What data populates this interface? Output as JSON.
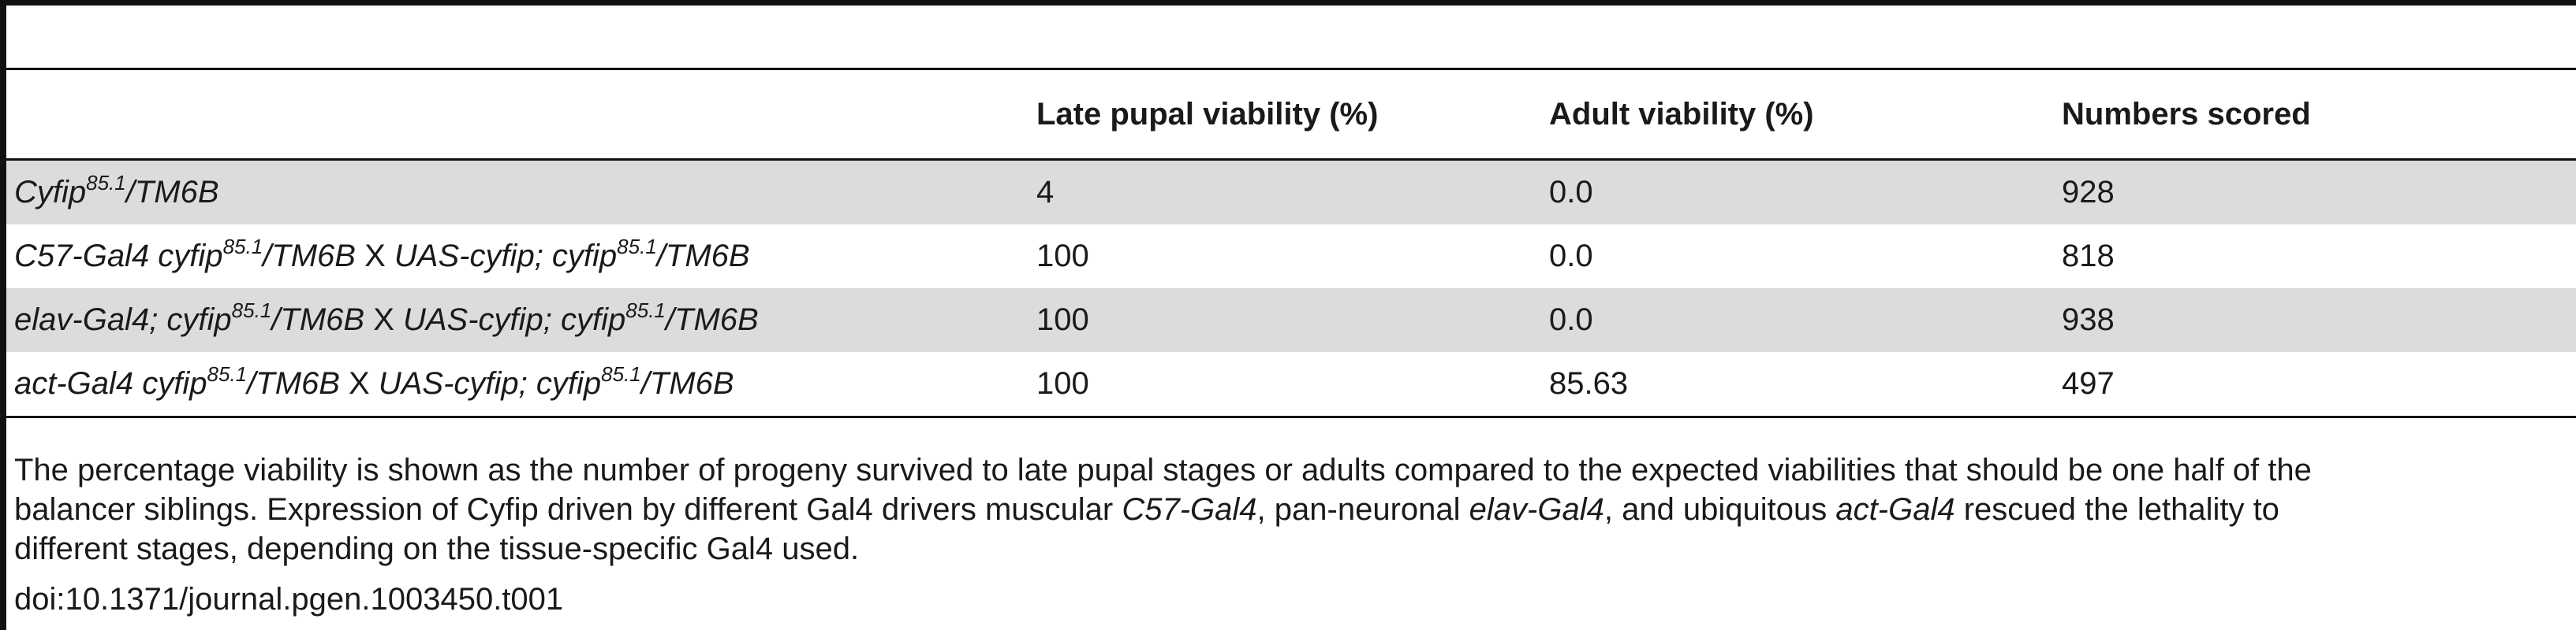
{
  "table": {
    "headers": [
      "",
      "Late pupal viability (%)",
      "Adult viability (%)",
      "Numbers scored"
    ],
    "rows": [
      {
        "genotype": [
          {
            "t": "Cyfip",
            "i": true
          },
          {
            "t": "85.1",
            "i": true,
            "sup": true
          },
          {
            "t": "/TM6B",
            "i": true
          }
        ],
        "late_pupal": "4",
        "adult": "0.0",
        "scored": "928"
      },
      {
        "genotype": [
          {
            "t": "C57-Gal4 cyfip",
            "i": true
          },
          {
            "t": "85.1",
            "i": true,
            "sup": true
          },
          {
            "t": "/TM6B",
            "i": true
          },
          {
            "t": " X ",
            "i": false
          },
          {
            "t": "UAS-cyfip; cyfip",
            "i": true
          },
          {
            "t": "85.1",
            "i": true,
            "sup": true
          },
          {
            "t": "/TM6B",
            "i": true
          }
        ],
        "late_pupal": "100",
        "adult": "0.0",
        "scored": "818"
      },
      {
        "genotype": [
          {
            "t": "elav-Gal4; cyfip",
            "i": true
          },
          {
            "t": "85.1",
            "i": true,
            "sup": true
          },
          {
            "t": "/TM6B",
            "i": true
          },
          {
            "t": " X ",
            "i": false
          },
          {
            "t": "UAS-cyfip; cyfip",
            "i": true
          },
          {
            "t": "85.1",
            "i": true,
            "sup": true
          },
          {
            "t": "/TM6B",
            "i": true
          }
        ],
        "late_pupal": "100",
        "adult": "0.0",
        "scored": "938"
      },
      {
        "genotype": [
          {
            "t": "act-Gal4 cyfip",
            "i": true
          },
          {
            "t": "85.1",
            "i": true,
            "sup": true
          },
          {
            "t": "/TM6B",
            "i": true
          },
          {
            "t": " X ",
            "i": false
          },
          {
            "t": "UAS-cyfip; cyfip",
            "i": true
          },
          {
            "t": "85.1",
            "i": true,
            "sup": true
          },
          {
            "t": "/TM6B",
            "i": true
          }
        ],
        "late_pupal": "100",
        "adult": "85.63",
        "scored": "497"
      }
    ]
  },
  "caption": {
    "line1": "The percentage viability is shown as the number of progeny survived to late pupal stages or adults compared to the expected viabilities that should be one half of the",
    "line2_a": "balancer siblings. Expression of Cyfip driven by different Gal4 drivers muscular ",
    "line2_b": "C57-Gal4",
    "line2_c": ", pan-neuronal ",
    "line2_d": "elav-Gal4",
    "line2_e": ", and ubiquitous ",
    "line2_f": "act-Gal4",
    "line2_g": " rescued the lethality to",
    "line3": "different stages, depending on the tissue-specific Gal4 used."
  },
  "doi": "doi:10.1371/journal.pgen.1003450.t001"
}
